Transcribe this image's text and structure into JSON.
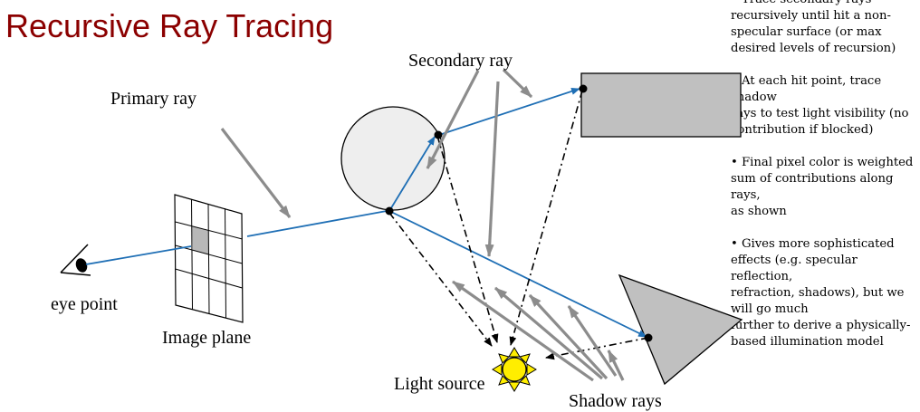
{
  "title": "Recursive Ray Tracing",
  "bullets": [
    {
      "lines": [
        "• Trace secondary rays",
        "recursively until hit a non-",
        "specular surface (or max",
        "desired levels of recursion)"
      ]
    },
    {
      "lines": [
        "• At each hit point, trace shadow",
        "rays to test light visibility (no",
        "contribution if blocked)"
      ]
    },
    {
      "lines": [
        "• Final pixel color is weighted",
        "sum of contributions along rays,",
        "as shown"
      ]
    },
    {
      "lines": [
        "• Gives more sophisticated",
        "effects (e.g. specular reflection,",
        "refraction, shadows), but we",
        "will go much",
        "further to derive a physically-",
        "based illumination model"
      ]
    }
  ],
  "labels": {
    "secondary_ray": "Secondary ray",
    "primary_ray": "Primary ray",
    "eye_point": "eye point",
    "image_plane": "Image plane",
    "light_source": "Light source",
    "shadow_rays": "Shadow rays"
  },
  "colors": {
    "title": "#8b0000",
    "ray": "#1f6fb5",
    "arrow": "#8c8c8c",
    "shape_fill": "#c0c0c0",
    "sphere_fill": "#eeeeee",
    "sun": "#ffee00"
  }
}
